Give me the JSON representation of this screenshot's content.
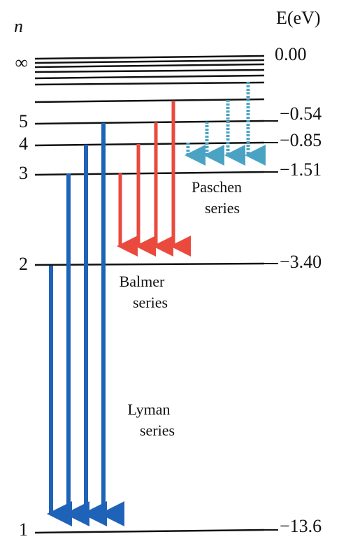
{
  "axis": {
    "n_label": "n",
    "energy_label": "E(eV)"
  },
  "levels": [
    {
      "n": "∞",
      "energy": "0.00"
    },
    {
      "n": "5",
      "energy": "−0.54"
    },
    {
      "n": "4",
      "energy": "−0.85"
    },
    {
      "n": "3",
      "energy": "−1.51"
    },
    {
      "n": "2",
      "energy": "−3.40"
    },
    {
      "n": "1",
      "energy": "−13.6"
    }
  ],
  "series": [
    {
      "lines": [
        "Paschen",
        "series"
      ]
    },
    {
      "lines": [
        "Balmer",
        "series"
      ]
    },
    {
      "lines": [
        "Lyman",
        "series"
      ]
    }
  ]
}
